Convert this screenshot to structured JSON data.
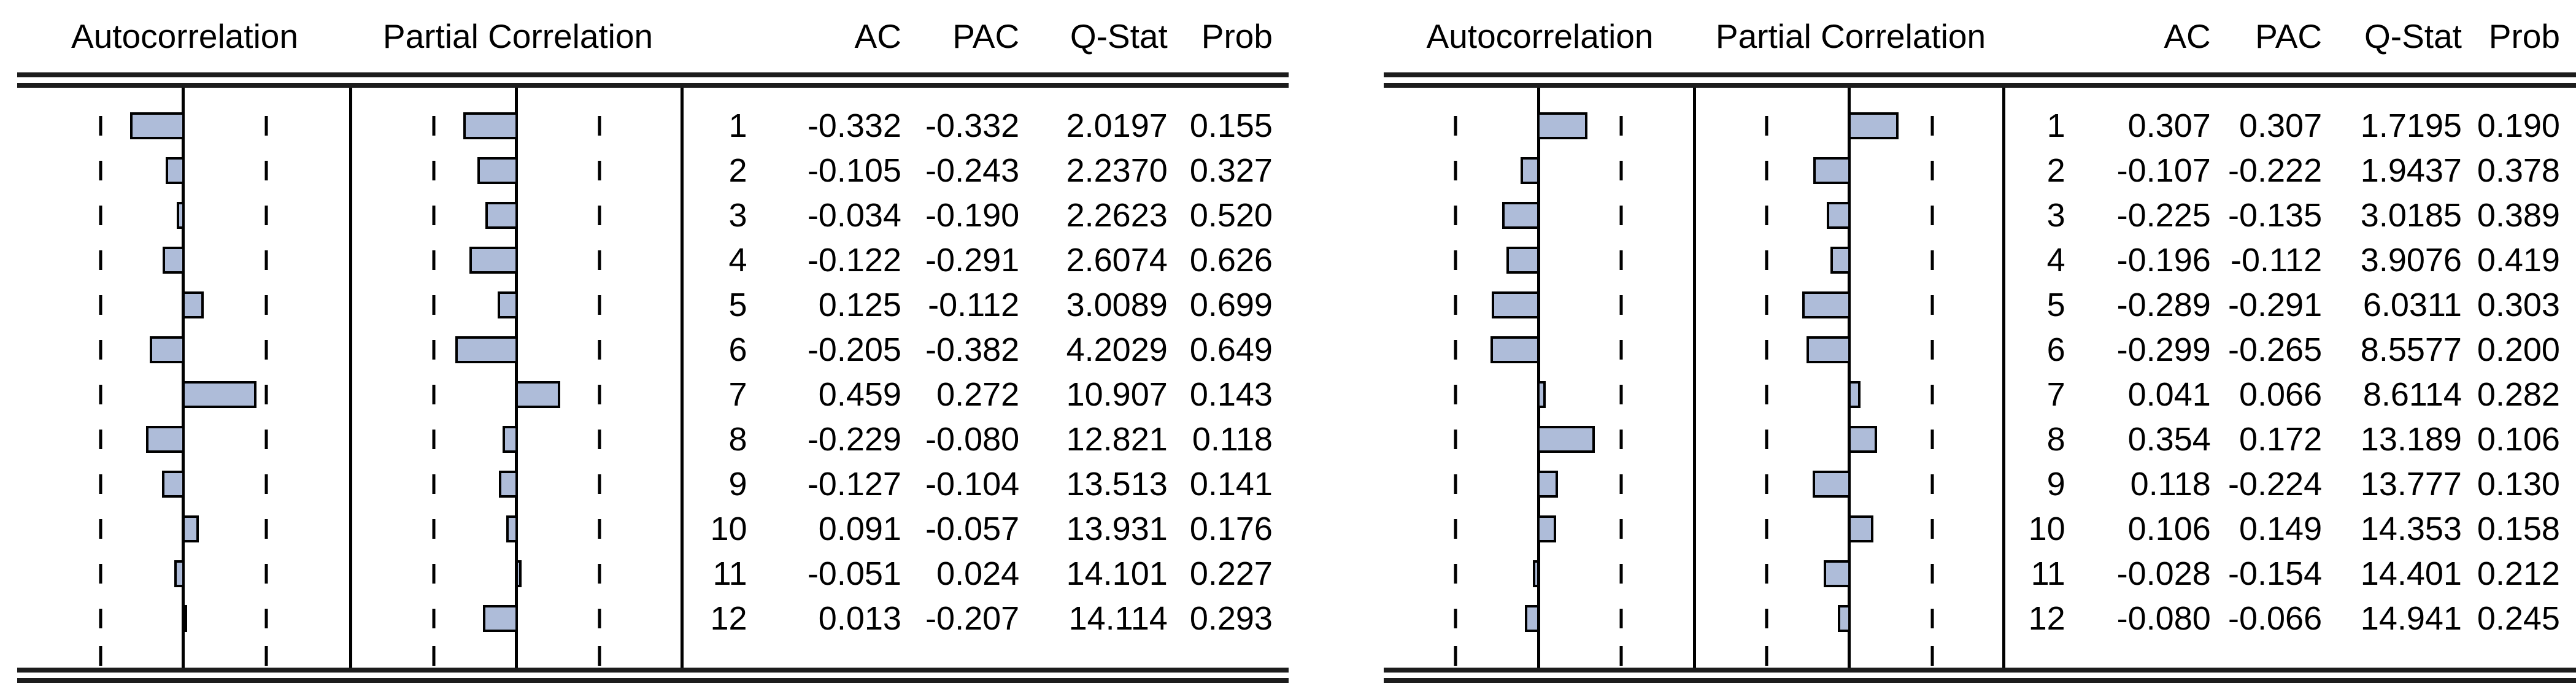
{
  "style": {
    "background": "#ffffff",
    "text_color": "#000000",
    "line_color": "#000000",
    "rule_color": "#1c1c1c",
    "bar_fill": "#aebcd9",
    "bar_border": "#000000"
  },
  "panels": [
    {
      "name": "left-correlogram",
      "headers": {
        "autocorrelation": "Autocorrelation",
        "partial_correlation": "Partial Correlation",
        "lag": "",
        "ac": "AC",
        "pac": "PAC",
        "q_stat": "Q-Stat",
        "prob": "Prob"
      },
      "rows": [
        {
          "lag": "1",
          "ac": "-0.332",
          "pac": "-0.332",
          "q_stat": "2.0197",
          "prob": "0.155"
        },
        {
          "lag": "2",
          "ac": "-0.105",
          "pac": "-0.243",
          "q_stat": "2.2370",
          "prob": "0.327"
        },
        {
          "lag": "3",
          "ac": "-0.034",
          "pac": "-0.190",
          "q_stat": "2.2623",
          "prob": "0.520"
        },
        {
          "lag": "4",
          "ac": "-0.122",
          "pac": "-0.291",
          "q_stat": "2.6074",
          "prob": "0.626"
        },
        {
          "lag": "5",
          "ac": "0.125",
          "pac": "-0.112",
          "q_stat": "3.0089",
          "prob": "0.699"
        },
        {
          "lag": "6",
          "ac": "-0.205",
          "pac": "-0.382",
          "q_stat": "4.2029",
          "prob": "0.649"
        },
        {
          "lag": "7",
          "ac": "0.459",
          "pac": "0.272",
          "q_stat": "10.907",
          "prob": "0.143"
        },
        {
          "lag": "8",
          "ac": "-0.229",
          "pac": "-0.080",
          "q_stat": "12.821",
          "prob": "0.118"
        },
        {
          "lag": "9",
          "ac": "-0.127",
          "pac": "-0.104",
          "q_stat": "13.513",
          "prob": "0.141"
        },
        {
          "lag": "10",
          "ac": "0.091",
          "pac": "-0.057",
          "q_stat": "13.931",
          "prob": "0.176"
        },
        {
          "lag": "11",
          "ac": "-0.051",
          "pac": "0.024",
          "q_stat": "14.101",
          "prob": "0.227"
        },
        {
          "lag": "12",
          "ac": "0.013",
          "pac": "-0.207",
          "q_stat": "14.114",
          "prob": "0.293"
        }
      ]
    },
    {
      "name": "right-correlogram",
      "headers": {
        "autocorrelation": "Autocorrelation",
        "partial_correlation": "Partial Correlation",
        "lag": "",
        "ac": "AC",
        "pac": "PAC",
        "q_stat": "Q-Stat",
        "prob": "Prob"
      },
      "rows": [
        {
          "lag": "1",
          "ac": "0.307",
          "pac": "0.307",
          "q_stat": "1.7195",
          "prob": "0.190"
        },
        {
          "lag": "2",
          "ac": "-0.107",
          "pac": "-0.222",
          "q_stat": "1.9437",
          "prob": "0.378"
        },
        {
          "lag": "3",
          "ac": "-0.225",
          "pac": "-0.135",
          "q_stat": "3.0185",
          "prob": "0.389"
        },
        {
          "lag": "4",
          "ac": "-0.196",
          "pac": "-0.112",
          "q_stat": "3.9076",
          "prob": "0.419"
        },
        {
          "lag": "5",
          "ac": "-0.289",
          "pac": "-0.291",
          "q_stat": "6.0311",
          "prob": "0.303"
        },
        {
          "lag": "6",
          "ac": "-0.299",
          "pac": "-0.265",
          "q_stat": "8.5577",
          "prob": "0.200"
        },
        {
          "lag": "7",
          "ac": "0.041",
          "pac": "0.066",
          "q_stat": "8.6114",
          "prob": "0.282"
        },
        {
          "lag": "8",
          "ac": "0.354",
          "pac": "0.172",
          "q_stat": "13.189",
          "prob": "0.106"
        },
        {
          "lag": "9",
          "ac": "0.118",
          "pac": "-0.224",
          "q_stat": "13.777",
          "prob": "0.130"
        },
        {
          "lag": "10",
          "ac": "0.106",
          "pac": "0.149",
          "q_stat": "14.353",
          "prob": "0.158"
        },
        {
          "lag": "11",
          "ac": "-0.028",
          "pac": "-0.154",
          "q_stat": "14.401",
          "prob": "0.212"
        },
        {
          "lag": "12",
          "ac": "-0.080",
          "pac": "-0.066",
          "q_stat": "14.941",
          "prob": "0.245"
        }
      ]
    }
  ],
  "chart_data": [
    {
      "type": "bar",
      "orientation": "horizontal",
      "title": "Correlogram (left panel)",
      "categories": [
        1,
        2,
        3,
        4,
        5,
        6,
        7,
        8,
        9,
        10,
        11,
        12
      ],
      "series": [
        {
          "name": "Autocorrelation (AC)",
          "values": [
            -0.332,
            -0.105,
            -0.034,
            -0.122,
            0.125,
            -0.205,
            0.459,
            -0.229,
            -0.127,
            0.091,
            -0.051,
            0.013
          ]
        },
        {
          "name": "Partial Correlation (PAC)",
          "values": [
            -0.332,
            -0.243,
            -0.19,
            -0.291,
            -0.112,
            -0.382,
            0.272,
            -0.08,
            -0.104,
            -0.057,
            0.024,
            -0.207
          ]
        },
        {
          "name": "Q-Stat",
          "values": [
            2.0197,
            2.237,
            2.2623,
            2.6074,
            3.0089,
            4.2029,
            10.907,
            12.821,
            13.513,
            13.931,
            14.101,
            14.114
          ]
        },
        {
          "name": "Prob",
          "values": [
            0.155,
            0.327,
            0.52,
            0.626,
            0.699,
            0.649,
            0.143,
            0.118,
            0.141,
            0.176,
            0.227,
            0.293
          ]
        }
      ],
      "value_axis_range": [
        -0.6,
        0.6
      ],
      "reference_lines": [
        -0.53,
        0.53
      ],
      "grid": false,
      "legend": "none"
    },
    {
      "type": "bar",
      "orientation": "horizontal",
      "title": "Correlogram (right panel)",
      "categories": [
        1,
        2,
        3,
        4,
        5,
        6,
        7,
        8,
        9,
        10,
        11,
        12
      ],
      "series": [
        {
          "name": "Autocorrelation (AC)",
          "values": [
            0.307,
            -0.107,
            -0.225,
            -0.196,
            -0.289,
            -0.299,
            0.041,
            0.354,
            0.118,
            0.106,
            -0.028,
            -0.08
          ]
        },
        {
          "name": "Partial Correlation (PAC)",
          "values": [
            0.307,
            -0.222,
            -0.135,
            -0.112,
            -0.291,
            -0.265,
            0.066,
            0.172,
            -0.224,
            0.149,
            -0.154,
            -0.066
          ]
        },
        {
          "name": "Q-Stat",
          "values": [
            1.7195,
            1.9437,
            3.0185,
            3.9076,
            6.0311,
            8.5577,
            8.6114,
            13.189,
            13.777,
            14.353,
            14.401,
            14.941
          ]
        },
        {
          "name": "Prob",
          "values": [
            0.19,
            0.378,
            0.389,
            0.419,
            0.303,
            0.2,
            0.282,
            0.106,
            0.13,
            0.158,
            0.212,
            0.245
          ]
        }
      ],
      "value_axis_range": [
        -0.6,
        0.6
      ],
      "reference_lines": [
        -0.53,
        0.53
      ],
      "grid": false,
      "legend": "none"
    }
  ]
}
